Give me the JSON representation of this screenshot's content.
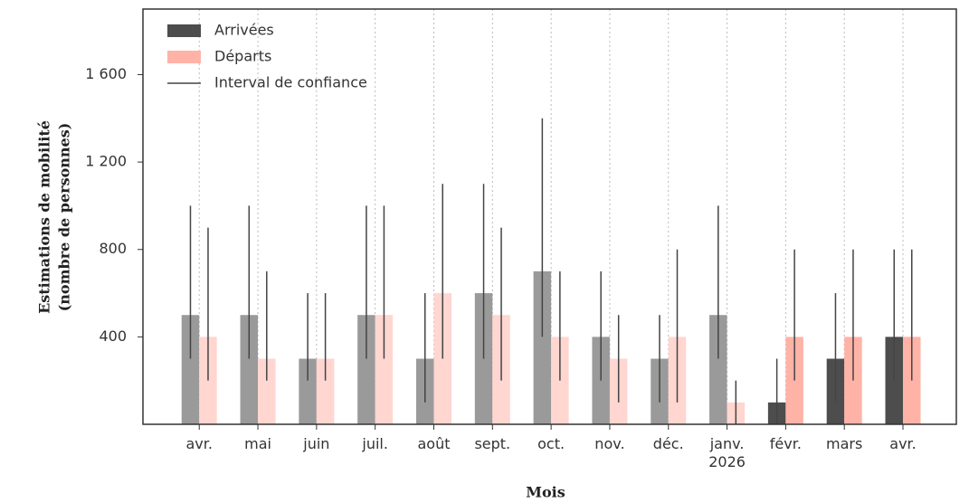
{
  "chart_data": {
    "type": "bar",
    "x_label": "Mois",
    "y_label": [
      "Estimations de mobilité",
      "(nombre de personnes)"
    ],
    "categories": [
      "avr.",
      "mai",
      "juin",
      "juil.",
      "août",
      "sept.",
      "oct.",
      "nov.",
      "déc.",
      "janv.\n2026",
      "févr.",
      "mars",
      "avr."
    ],
    "series": [
      {
        "name": "Arrivées",
        "color": "#4d4d4d",
        "values": [
          500,
          500,
          300,
          500,
          300,
          600,
          700,
          400,
          300,
          500,
          100,
          300,
          400
        ],
        "lower": [
          300,
          300,
          200,
          300,
          100,
          300,
          400,
          200,
          100,
          300,
          0,
          100,
          200
        ],
        "upper": [
          1000,
          1000,
          600,
          1000,
          600,
          1100,
          1400,
          700,
          500,
          1000,
          300,
          600,
          800
        ],
        "colors": [
          "#9a9a9a",
          "#9a9a9a",
          "#9a9a9a",
          "#9a9a9a",
          "#9a9a9a",
          "#9a9a9a",
          "#9a9a9a",
          "#9a9a9a",
          "#9a9a9a",
          "#9a9a9a",
          "#4d4d4d",
          "#4d4d4d",
          "#4d4d4d"
        ]
      },
      {
        "name": "Départs",
        "color": "#ffb3a7",
        "values": [
          400,
          300,
          300,
          500,
          600,
          500,
          400,
          300,
          400,
          100,
          400,
          400,
          400
        ],
        "lower": [
          200,
          200,
          200,
          300,
          300,
          200,
          200,
          100,
          100,
          0,
          200,
          200,
          200
        ],
        "upper": [
          900,
          700,
          600,
          1000,
          1100,
          900,
          700,
          500,
          800,
          200,
          800,
          800,
          800
        ],
        "colors": [
          "#ffd6d0",
          "#ffd6d0",
          "#ffd6d0",
          "#ffd6d0",
          "#ffd6d0",
          "#ffd6d0",
          "#ffd6d0",
          "#ffd6d0",
          "#ffd6d0",
          "#ffd6d0",
          "#ffb3a7",
          "#ffb3a7",
          "#ffb3a7"
        ]
      }
    ],
    "interval_label": "Interval de confiance",
    "interval_color": "#444444",
    "ylim": [
      0,
      1900
    ],
    "yticks": [
      400,
      800,
      {
        "value": 1200,
        "label": "1 200"
      },
      {
        "value": 1600,
        "label": "1 600"
      }
    ],
    "x_grid": true,
    "legend": "upper-left"
  }
}
